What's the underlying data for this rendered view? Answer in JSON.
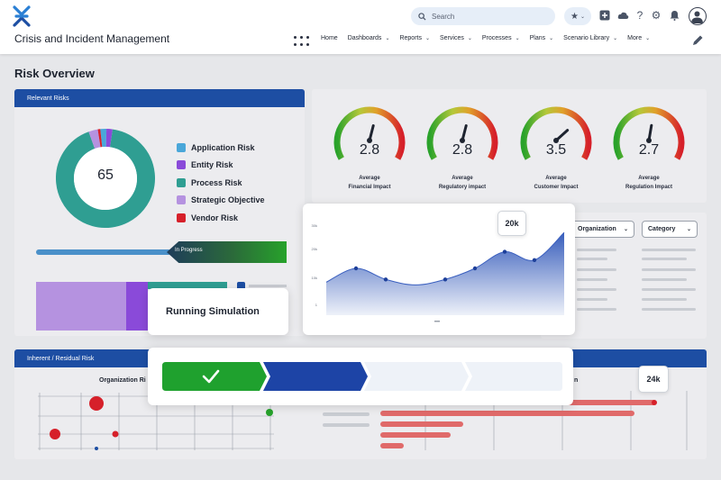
{
  "header": {
    "app_title": "Crisis and Incident Management",
    "search_placeholder": "Search",
    "icons": [
      "logo-icon",
      "search-icon",
      "star-icon",
      "add-icon",
      "cloud-icon",
      "help-icon",
      "gear-icon",
      "bell-icon",
      "user-icon",
      "apps-grid-icon",
      "edit-icon"
    ]
  },
  "nav": [
    {
      "label": "Home",
      "dropdown": false
    },
    {
      "label": "Dashboards",
      "dropdown": true
    },
    {
      "label": "Reports",
      "dropdown": true
    },
    {
      "label": "Services",
      "dropdown": true
    },
    {
      "label": "Processes",
      "dropdown": true
    },
    {
      "label": "Plans",
      "dropdown": true
    },
    {
      "label": "Scenario Library",
      "dropdown": true
    },
    {
      "label": "More",
      "dropdown": true
    }
  ],
  "page_title": "Risk Overview",
  "relevant_risks": {
    "title": "Relevant Risks",
    "total": "65",
    "legend": [
      {
        "label": "Application Risk",
        "color": "#4aa7d9"
      },
      {
        "label": "Entity Risk",
        "color": "#8a4ad9"
      },
      {
        "label": "Process Risk",
        "color": "#2f9e92"
      },
      {
        "label": "Strategic Objective",
        "color": "#b592e0"
      },
      {
        "label": "Vendor Risk",
        "color": "#d6202a"
      }
    ],
    "donut_shares": [
      0.02,
      0.02,
      0.92,
      0.03,
      0.01
    ],
    "progress_label": "In Progress"
  },
  "gauges": [
    {
      "value": "2.8",
      "label_line1": "Average",
      "label_line2": "Financial Impact"
    },
    {
      "value": "2.8",
      "label_line1": "Average",
      "label_line2": "Regulatory impact"
    },
    {
      "value": "3.5",
      "label_line1": "Average",
      "label_line2": "Customer Impact"
    },
    {
      "value": "2.7",
      "label_line1": "Average",
      "label_line2": "Regulation Impact"
    }
  ],
  "gauge_scale_max": 5,
  "filters": {
    "organization": "Organization",
    "category": "Category"
  },
  "line_chart": {
    "y_ticks": [
      "30k",
      "20k",
      "10k",
      "1"
    ],
    "tooltip": "20k",
    "points": [
      10,
      15,
      11,
      9,
      11,
      15,
      21,
      18,
      28
    ],
    "ylim": [
      0,
      30
    ]
  },
  "simulation": {
    "label": "Running Simulation",
    "steps_total": 4,
    "steps_done": 1,
    "active_step": 2
  },
  "inherent": {
    "title": "Inherent / Residual Risk",
    "org_label": "Organization Ri",
    "right_label": "n",
    "tooltip": "24k"
  },
  "colors": {
    "brand_blue": "#1d4ea3",
    "accent_green": "#27a22b",
    "danger_red": "#d6202a",
    "teal": "#2f9e92"
  }
}
